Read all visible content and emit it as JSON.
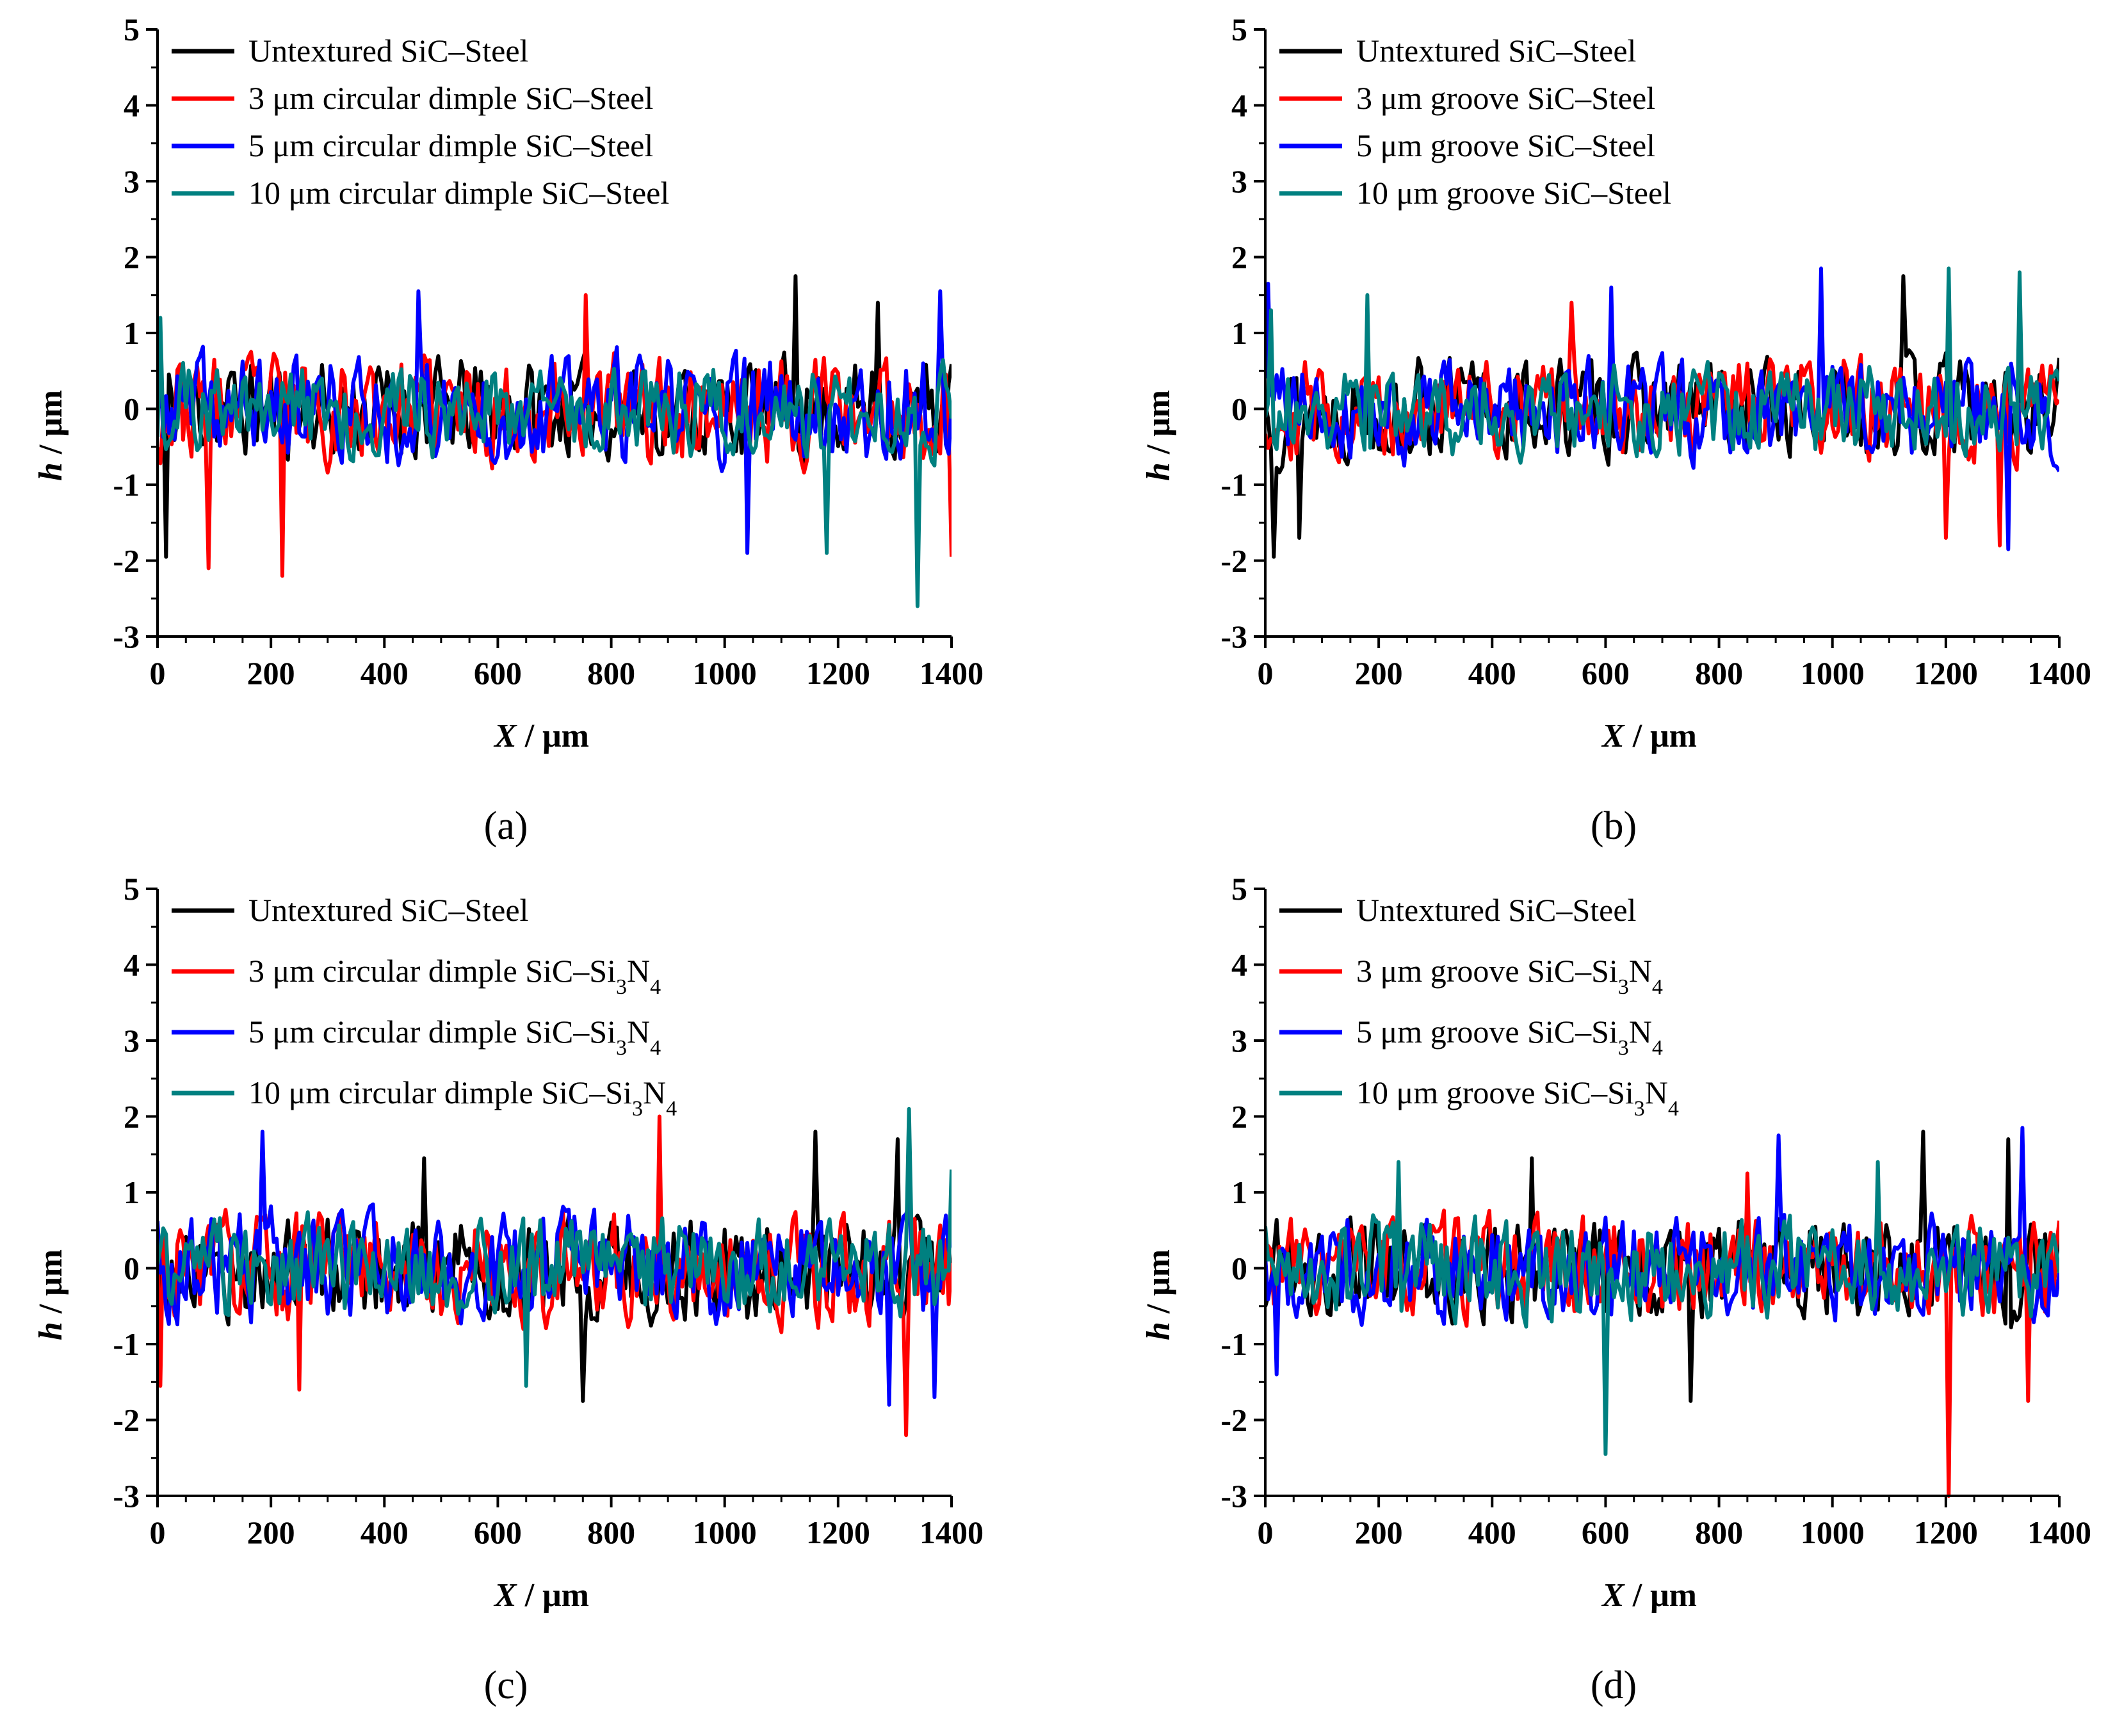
{
  "figure": {
    "panels": [
      {
        "id": "a",
        "label": "(a)"
      },
      {
        "id": "b",
        "label": "(b)"
      },
      {
        "id": "c",
        "label": "(c)"
      },
      {
        "id": "d",
        "label": "(d)"
      }
    ]
  },
  "chart_data": [
    {
      "panel": "(a)",
      "type": "line",
      "xlabel": {
        "var": "X",
        "unit": " / μm"
      },
      "ylabel": {
        "var": "h",
        "unit": " / μm"
      },
      "xlim": [
        0,
        1400
      ],
      "ylim": [
        -3,
        5
      ],
      "xticks": [
        0,
        200,
        400,
        600,
        800,
        1000,
        1200,
        1400
      ],
      "yticks": [
        -3,
        -2,
        -1,
        0,
        1,
        2,
        3,
        4,
        5
      ],
      "series": [
        {
          "name": "Untextured SiC–Steel",
          "color": "#000000",
          "profile": {
            "amp": 0.55,
            "trend": 0.0,
            "seed": 11,
            "peaks": [
              [
                15,
                -1.95
              ],
              [
                1125,
                1.75
              ],
              [
                1270,
                1.4
              ]
            ]
          }
        },
        {
          "name": "3 μm circular dimple SiC–Steel",
          "color": "#ff0000",
          "profile": {
            "amp": 0.6,
            "trend": 0.0,
            "seed": 23,
            "peaks": [
              [
                220,
                -2.2
              ],
              [
                90,
                -2.1
              ],
              [
                755,
                1.5
              ],
              [
                1400,
                -1.95
              ]
            ]
          }
        },
        {
          "name": "5 μm circular dimple SiC–Steel",
          "color": "#0000ff",
          "profile": {
            "amp": 0.6,
            "trend": 0.0,
            "seed": 37,
            "peaks": [
              [
                460,
                1.55
              ],
              [
                1040,
                -1.9
              ],
              [
                1380,
                1.55
              ]
            ]
          }
        },
        {
          "name": "10 μm circular dimple SiC–Steel",
          "color": "#008080",
          "profile": {
            "amp": 0.5,
            "trend": 0.0,
            "seed": 51,
            "peaks": [
              [
                1340,
                -2.6
              ],
              [
                1180,
                -1.9
              ],
              [
                5,
                1.2
              ]
            ]
          }
        }
      ]
    },
    {
      "panel": "(b)",
      "type": "line",
      "xlabel": {
        "var": "X",
        "unit": " / μm"
      },
      "ylabel": {
        "var": "h",
        "unit": " / μm"
      },
      "xlim": [
        0,
        1400
      ],
      "ylim": [
        -3,
        5
      ],
      "xticks": [
        0,
        200,
        400,
        600,
        800,
        1000,
        1200,
        1400
      ],
      "yticks": [
        -3,
        -2,
        -1,
        0,
        1,
        2,
        3,
        4,
        5
      ],
      "series": [
        {
          "name": "Untextured SiC–Steel",
          "color": "#000000",
          "profile": {
            "amp": 0.55,
            "trend": 0.0,
            "seed": 13,
            "peaks": [
              [
                15,
                -1.95
              ],
              [
                60,
                -1.7
              ],
              [
                1125,
                1.75
              ]
            ]
          }
        },
        {
          "name": "3 μm groove SiC–Steel",
          "color": "#ff0000",
          "profile": {
            "amp": 0.55,
            "trend": 0.0,
            "seed": 29,
            "peaks": [
              [
                1200,
                -1.7
              ],
              [
                1295,
                -1.8
              ],
              [
                540,
                1.4
              ]
            ]
          }
        },
        {
          "name": "5 μm groove SiC–Steel",
          "color": "#0000ff",
          "profile": {
            "amp": 0.55,
            "trend": 0.0,
            "seed": 41,
            "peaks": [
              [
                980,
                1.85
              ],
              [
                1310,
                -1.85
              ],
              [
                5,
                1.65
              ],
              [
                610,
                1.6
              ]
            ]
          }
        },
        {
          "name": "10 μm groove SiC–Steel",
          "color": "#008080",
          "profile": {
            "amp": 0.5,
            "trend": 0.0,
            "seed": 59,
            "peaks": [
              [
                1205,
                1.85
              ],
              [
                1330,
                1.8
              ],
              [
                180,
                1.5
              ],
              [
                10,
                1.3
              ]
            ]
          }
        }
      ]
    },
    {
      "panel": "(c)",
      "type": "line",
      "xlabel": {
        "var": "X",
        "unit": " / μm"
      },
      "ylabel": {
        "var": "h",
        "unit": " / μm"
      },
      "xlim": [
        0,
        1400
      ],
      "ylim": [
        -3,
        5
      ],
      "xticks": [
        0,
        200,
        400,
        600,
        800,
        1000,
        1200,
        1400
      ],
      "yticks": [
        -3,
        -2,
        -1,
        0,
        1,
        2,
        3,
        4,
        5
      ],
      "series": [
        {
          "name": "Untextured SiC–Steel",
          "color": "#000000",
          "profile": {
            "amp": 0.6,
            "trend": 0.0,
            "seed": 17,
            "peaks": [
              [
                750,
                -1.75
              ],
              [
                1160,
                1.8
              ],
              [
                1305,
                1.7
              ],
              [
                470,
                1.45
              ]
            ]
          }
        },
        {
          "name": "3 μm circular dimple SiC–Si3N4",
          "color": "#ff0000",
          "profile": {
            "amp": 0.6,
            "trend": 0.0,
            "seed": 31,
            "peaks": [
              [
                885,
                2.0
              ],
              [
                1320,
                -2.2
              ],
              [
                250,
                -1.6
              ],
              [
                5,
                -1.55
              ]
            ]
          }
        },
        {
          "name": "5 μm circular dimple SiC–Si3N4",
          "color": "#0000ff",
          "profile": {
            "amp": 0.6,
            "trend": 0.0,
            "seed": 43,
            "peaks": [
              [
                185,
                1.8
              ],
              [
                1290,
                -1.8
              ],
              [
                1370,
                -1.7
              ]
            ]
          }
        },
        {
          "name": "10 μm circular dimple SiC–Si3N4",
          "color": "#008080",
          "profile": {
            "amp": 0.55,
            "trend": 0.0,
            "seed": 61,
            "peaks": [
              [
                1325,
                2.1
              ],
              [
                1400,
                1.3
              ],
              [
                650,
                -1.55
              ]
            ]
          }
        }
      ]
    },
    {
      "panel": "(d)",
      "type": "line",
      "xlabel": {
        "var": "X",
        "unit": " / μm"
      },
      "ylabel": {
        "var": "h",
        "unit": " / μm"
      },
      "xlim": [
        0,
        1400
      ],
      "ylim": [
        -3,
        5
      ],
      "xticks": [
        0,
        200,
        400,
        600,
        800,
        1000,
        1200,
        1400
      ],
      "yticks": [
        -3,
        -2,
        -1,
        0,
        1,
        2,
        3,
        4,
        5
      ],
      "series": [
        {
          "name": "Untextured SiC–Steel",
          "color": "#000000",
          "profile": {
            "amp": 0.55,
            "trend": 0.0,
            "seed": 19,
            "peaks": [
              [
                1160,
                1.8
              ],
              [
                1310,
                1.7
              ],
              [
                750,
                -1.75
              ],
              [
                470,
                1.45
              ]
            ]
          }
        },
        {
          "name": "3 μm groove SiC–Si3N4",
          "color": "#ff0000",
          "profile": {
            "amp": 0.55,
            "trend": 0.0,
            "seed": 33,
            "peaks": [
              [
                1205,
                -3.0
              ],
              [
                1345,
                -1.75
              ],
              [
                850,
                1.25
              ]
            ]
          }
        },
        {
          "name": "5 μm groove SiC–Si3N4",
          "color": "#0000ff",
          "profile": {
            "amp": 0.55,
            "trend": 0.0,
            "seed": 47,
            "peaks": [
              [
                1335,
                1.85
              ],
              [
                905,
                1.75
              ],
              [
                20,
                -1.4
              ]
            ]
          }
        },
        {
          "name": "10 μm groove SiC–Si3N4",
          "color": "#008080",
          "profile": {
            "amp": 0.55,
            "trend": 0.0,
            "seed": 67,
            "peaks": [
              [
                600,
                -2.45
              ],
              [
                235,
                1.4
              ],
              [
                1080,
                1.4
              ]
            ]
          }
        }
      ]
    }
  ]
}
